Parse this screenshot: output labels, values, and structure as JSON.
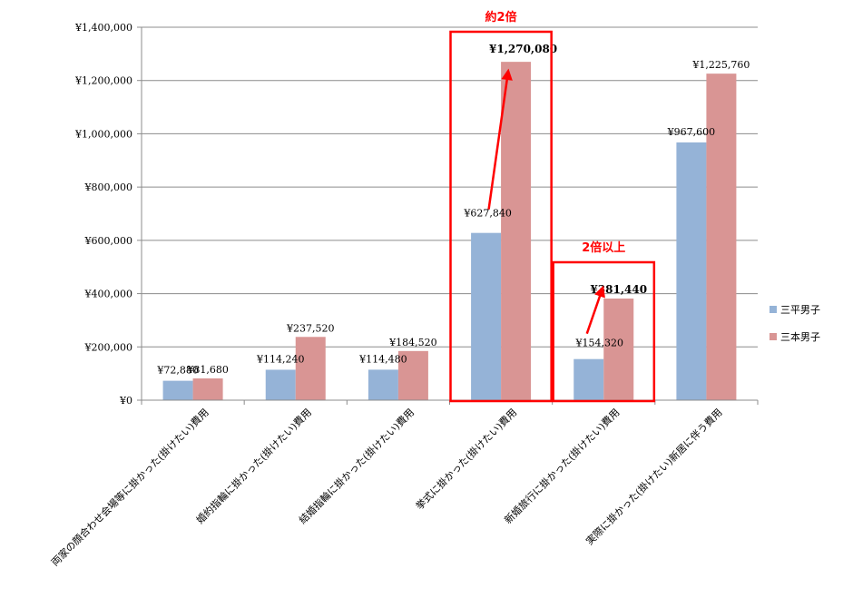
{
  "chart_data": {
    "type": "bar",
    "categories": [
      "両家の顔合わせ会場等に掛かった(掛けたい)費用",
      "婚約指輪に掛かった(掛けたい)費用",
      "結婚指輪に掛かった(掛けたい)費用",
      "挙式に掛かった(掛けたい)費用",
      "新婚旅行に掛かった(掛けたい)費用",
      "実際に掛かった(掛けたい)新居に伴う費用"
    ],
    "series": [
      {
        "name": "三平男子",
        "color": "#95b3d7",
        "values": [
          72880,
          114240,
          114480,
          627840,
          154320,
          967600
        ],
        "labels": [
          "¥72,880",
          "¥114,240",
          "¥114,480",
          "¥627,840",
          "¥154,320",
          "¥967,600"
        ]
      },
      {
        "name": "三本男子",
        "color": "#d99594",
        "values": [
          81680,
          237520,
          184520,
          1270080,
          381440,
          1225760
        ],
        "labels": [
          "¥81,680",
          "¥237,520",
          "¥184,520",
          "¥1,270,080",
          "¥381,440",
          "¥1,225,760"
        ]
      }
    ],
    "ylim": [
      0,
      1400000
    ],
    "yticks": [
      0,
      200000,
      400000,
      600000,
      800000,
      1000000,
      1200000,
      1400000
    ],
    "ytick_labels": [
      "¥0",
      "¥200,000",
      "¥400,000",
      "¥600,000",
      "¥800,000",
      "¥1,000,000",
      "¥1,200,000",
      "¥1,400,000"
    ],
    "grid": true,
    "legend_position": "right",
    "annotations": [
      {
        "text": "約2倍",
        "category_index": 3,
        "color": "#ff0000"
      },
      {
        "text": "2倍以上",
        "category_index": 4,
        "color": "#ff0000"
      }
    ]
  }
}
